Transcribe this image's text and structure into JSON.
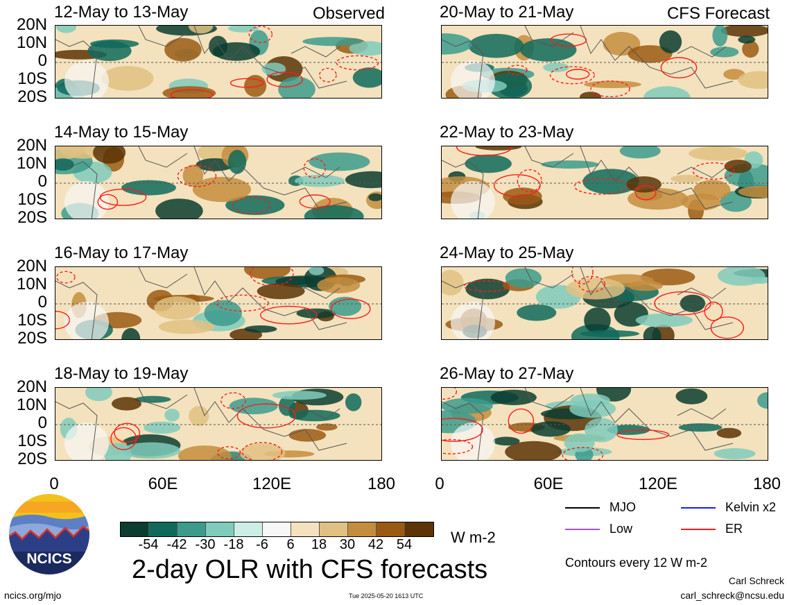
{
  "panels_left": [
    {
      "title": "12-May to 13-May",
      "tag": "Observed"
    },
    {
      "title": "14-May to 15-May",
      "tag": ""
    },
    {
      "title": "16-May to 17-May",
      "tag": ""
    },
    {
      "title": "18-May to 19-May",
      "tag": ""
    }
  ],
  "panels_right": [
    {
      "title": "20-May to 21-May",
      "tag": "CFS Forecast"
    },
    {
      "title": "22-May to 23-May",
      "tag": ""
    },
    {
      "title": "24-May to 25-May",
      "tag": ""
    },
    {
      "title": "26-May to 27-May",
      "tag": ""
    }
  ],
  "chart_data": {
    "type": "heatmap",
    "title": "2-day OLR with CFS forecasts",
    "lat_ticks": [
      "20N",
      "10N",
      "0",
      "10S",
      "20S"
    ],
    "lon_ticks": [
      "0",
      "60E",
      "120E",
      "180"
    ],
    "colorbar": {
      "units": "W m-2",
      "labels": [
        "-54",
        "-42",
        "-30",
        "-18",
        "-6",
        "6",
        "18",
        "30",
        "42",
        "54"
      ],
      "colors": [
        "#0b3d30",
        "#0f6a5c",
        "#3c9b8d",
        "#7fcbbc",
        "#cdeee6",
        "#f7f7f7",
        "#f3e2bd",
        "#e0c183",
        "#c48d3e",
        "#9a5a14",
        "#5c3406"
      ]
    },
    "legend": [
      {
        "label": "MJO",
        "color": "#000000"
      },
      {
        "label": "Kelvin x2",
        "color": "#1a1aff"
      },
      {
        "label": "Low",
        "color": "#a64dff"
      },
      {
        "label": "ER",
        "color": "#ff1a1a"
      }
    ],
    "contour_note": "Contours every 12 W m-2"
  },
  "footer": {
    "url": "ncics.org/mjo",
    "timestamp": "Tue 2025-05-20 1613 UTC",
    "author": "Carl Schreck",
    "email": "carl_schreck@ncsu.edu",
    "logo_text": "NCICS"
  }
}
